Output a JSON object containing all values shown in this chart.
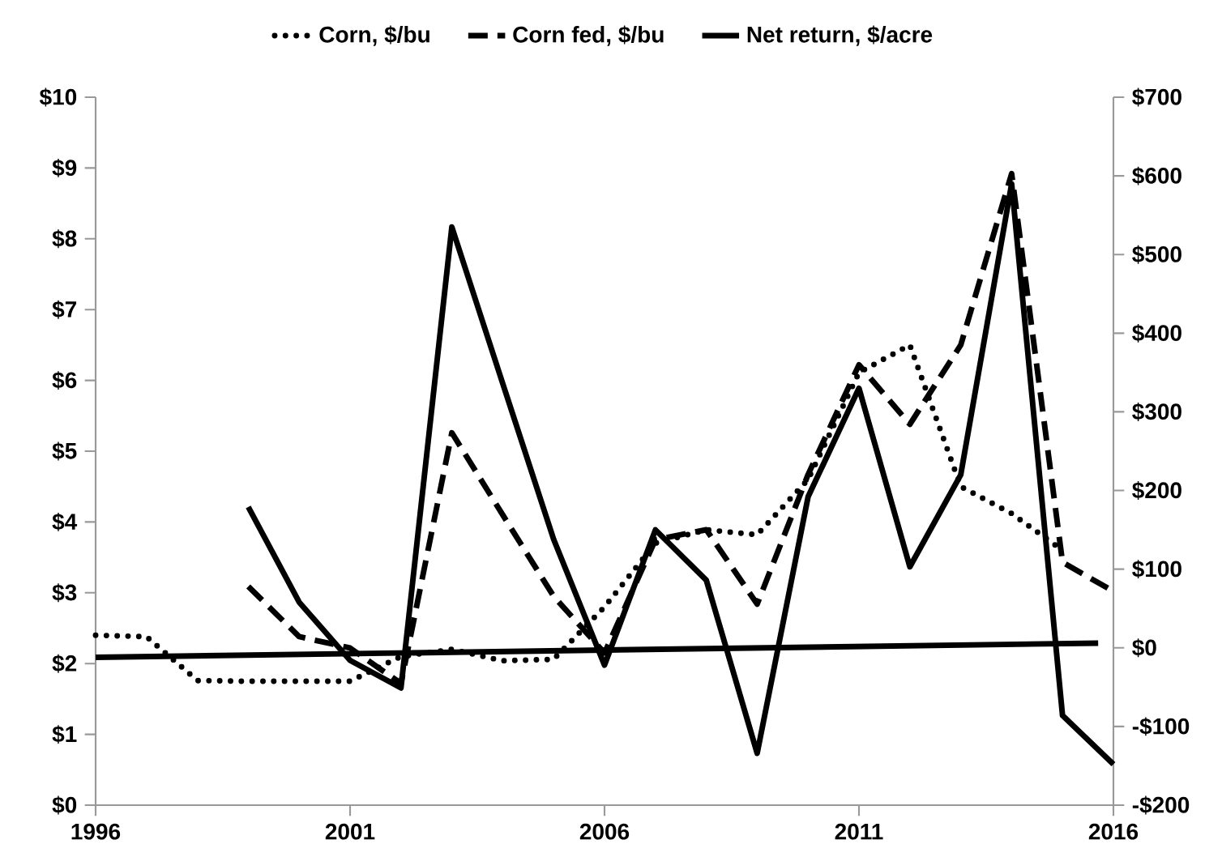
{
  "chart_data": {
    "type": "line",
    "x": [
      1996,
      1997,
      1998,
      1999,
      2000,
      2001,
      2002,
      2003,
      2004,
      2005,
      2006,
      2007,
      2008,
      2009,
      2010,
      2011,
      2012,
      2013,
      2014,
      2015,
      2016
    ],
    "series": [
      {
        "name": "Corn, $/bu",
        "color": "#000000",
        "line_style": "dotted",
        "axis": "y",
        "values": [
          2.4,
          2.38,
          1.76,
          1.75,
          1.75,
          1.75,
          2.1,
          2.2,
          2.04,
          2.06,
          2.8,
          3.7,
          3.89,
          3.82,
          4.6,
          6.11,
          6.5,
          4.5,
          4.12,
          3.6,
          null
        ]
      },
      {
        "name": "Corn fed, $/bu",
        "color": "#000000",
        "line_style": "dashed",
        "axis": "y",
        "values": [
          null,
          null,
          null,
          3.09,
          2.38,
          2.22,
          1.72,
          5.26,
          4.1,
          2.95,
          2.15,
          3.75,
          3.89,
          2.84,
          4.67,
          6.22,
          5.38,
          6.5,
          8.92,
          3.43,
          3.02
        ]
      },
      {
        "name": "Net return, $/acre",
        "color": "#000000",
        "line_style": "solid",
        "axis": "y2",
        "values": [
          null,
          null,
          null,
          179,
          58,
          -16,
          -51,
          535,
          336,
          138,
          -22,
          150,
          86,
          -134,
          192,
          330,
          103,
          220,
          590,
          -86,
          -148
        ]
      },
      {
        "type": "line",
        "color": "#000000",
        "line_style": "solid",
        "axis": "y2",
        "x": [
          1996,
          2015.7
        ],
        "values": [
          -12,
          6
        ]
      }
    ],
    "xlim": [
      1996,
      2016
    ],
    "xticks": [
      1996,
      2001,
      2006,
      2011,
      2016
    ],
    "ylim": [
      0,
      10
    ],
    "yticks": [
      {
        "value": 0,
        "label": "$0"
      },
      {
        "value": 1,
        "label": "$1"
      },
      {
        "value": 2,
        "label": "$2"
      },
      {
        "value": 3,
        "label": "$3"
      },
      {
        "value": 4,
        "label": "$4"
      },
      {
        "value": 5,
        "label": "$5"
      },
      {
        "value": 6,
        "label": "$6"
      },
      {
        "value": 7,
        "label": "$7"
      },
      {
        "value": 8,
        "label": "$8"
      },
      {
        "value": 9,
        "label": "$9"
      },
      {
        "value": 10,
        "label": "$10"
      }
    ],
    "y2lim": [
      -200,
      700
    ],
    "y2ticks": [
      {
        "value": -200,
        "label": "-$200"
      },
      {
        "value": -100,
        "label": "-$100"
      },
      {
        "value": 0,
        "label": "$0"
      },
      {
        "value": 100,
        "label": "$100"
      },
      {
        "value": 200,
        "label": "$200"
      },
      {
        "value": 300,
        "label": "$300"
      },
      {
        "value": 400,
        "label": "$400"
      },
      {
        "value": 500,
        "label": "$500"
      },
      {
        "value": 600,
        "label": "$600"
      },
      {
        "value": 700,
        "label": "$700"
      }
    ],
    "legend": "top",
    "grid": false
  }
}
